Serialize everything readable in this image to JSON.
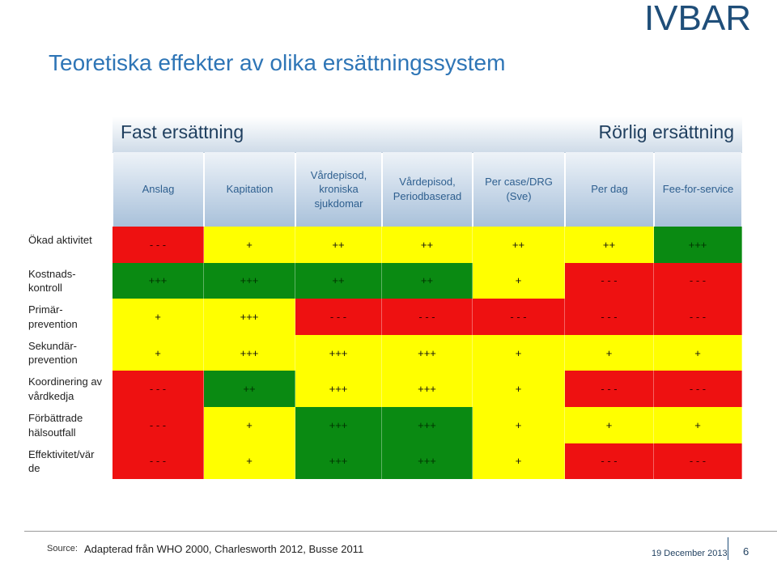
{
  "brand": "IVBAR",
  "title": "Teoretiska effekter av olika ersättningssystem",
  "scale": {
    "left": "Fast ersättning",
    "right": "Rörlig ersättning"
  },
  "columns": [
    "Anslag",
    "Kapitation",
    "Vårdepisod,\nkroniska\nsjukdomar",
    "Vårdepisod,\nPeriodbaserad",
    "Per case/DRG\n(Sve)",
    "Per dag",
    "Fee-for-service"
  ],
  "rows": [
    {
      "label": "Ökad aktivitet",
      "cells": [
        {
          "v": "- - -",
          "c": "red"
        },
        {
          "v": "+",
          "c": "yellow"
        },
        {
          "v": "++",
          "c": "yellow"
        },
        {
          "v": "++",
          "c": "yellow"
        },
        {
          "v": "++",
          "c": "yellow"
        },
        {
          "v": "++",
          "c": "yellow"
        },
        {
          "v": "+++",
          "c": "green"
        }
      ]
    },
    {
      "label": "Kostnads-\nkontroll",
      "cells": [
        {
          "v": "+++",
          "c": "green"
        },
        {
          "v": "+++",
          "c": "green"
        },
        {
          "v": "++",
          "c": "green"
        },
        {
          "v": "++",
          "c": "green"
        },
        {
          "v": "+",
          "c": "yellow"
        },
        {
          "v": "- - -",
          "c": "red"
        },
        {
          "v": "- - -",
          "c": "red"
        }
      ]
    },
    {
      "label": "Primär-\nprevention",
      "cells": [
        {
          "v": "+",
          "c": "yellow"
        },
        {
          "v": "+++",
          "c": "yellow"
        },
        {
          "v": "- - -",
          "c": "red"
        },
        {
          "v": "- - -",
          "c": "red"
        },
        {
          "v": "- - -",
          "c": "red"
        },
        {
          "v": "- - -",
          "c": "red"
        },
        {
          "v": "- - -",
          "c": "red"
        }
      ]
    },
    {
      "label": "Sekundär-\nprevention",
      "cells": [
        {
          "v": "+",
          "c": "yellow"
        },
        {
          "v": "+++",
          "c": "yellow"
        },
        {
          "v": "+++",
          "c": "yellow"
        },
        {
          "v": "+++",
          "c": "yellow"
        },
        {
          "v": "+",
          "c": "yellow"
        },
        {
          "v": "+",
          "c": "yellow"
        },
        {
          "v": "+",
          "c": "yellow"
        }
      ]
    },
    {
      "label": "Koordinering av\nvårdkedja",
      "cells": [
        {
          "v": "- - -",
          "c": "red"
        },
        {
          "v": "++",
          "c": "green"
        },
        {
          "v": "+++",
          "c": "yellow"
        },
        {
          "v": "+++",
          "c": "yellow"
        },
        {
          "v": "+",
          "c": "yellow"
        },
        {
          "v": "- - -",
          "c": "red"
        },
        {
          "v": "- - -",
          "c": "red"
        }
      ]
    },
    {
      "label": "Förbättrade\nhälsoutfall",
      "cells": [
        {
          "v": "- - -",
          "c": "red"
        },
        {
          "v": "+",
          "c": "yellow"
        },
        {
          "v": "+++",
          "c": "green"
        },
        {
          "v": "+++",
          "c": "green"
        },
        {
          "v": "+",
          "c": "yellow"
        },
        {
          "v": "+",
          "c": "yellow"
        },
        {
          "v": "+",
          "c": "yellow"
        }
      ]
    },
    {
      "label": "Effektivitet/vär\nde",
      "cells": [
        {
          "v": "- - -",
          "c": "red"
        },
        {
          "v": "+",
          "c": "yellow"
        },
        {
          "v": "+++",
          "c": "green"
        },
        {
          "v": "+++",
          "c": "green"
        },
        {
          "v": "+",
          "c": "yellow"
        },
        {
          "v": "- - -",
          "c": "red"
        },
        {
          "v": "- - -",
          "c": "red"
        }
      ]
    }
  ],
  "colors": {
    "red": "#ee1111",
    "yellow": "#ffff00",
    "green": "#0a8a12"
  },
  "footer": {
    "source_label": "Source:",
    "source_text": "Adapterad från WHO 2000, Charlesworth 2012, Busse 2011",
    "date": "19 December 2013",
    "page": "6"
  }
}
